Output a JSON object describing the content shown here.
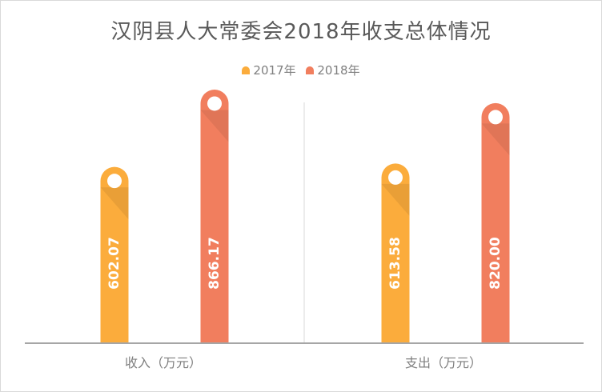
{
  "chart_data": {
    "type": "bar",
    "title": "汉阴县人大常委会2018年收支总体情况",
    "categories": [
      "收入（万元）",
      "支出（万元）"
    ],
    "series": [
      {
        "name": "2017年",
        "values": [
          602.07,
          613.58
        ],
        "labels": [
          "602.07",
          "613.58"
        ],
        "color": "#FBAC3C"
      },
      {
        "name": "2018年",
        "values": [
          866.17,
          820.0
        ],
        "labels": [
          "866.17",
          "820.00"
        ],
        "color": "#F17E5E"
      }
    ],
    "ylim": [
      0,
      1000
    ],
    "grid": false,
    "legend": "top-center",
    "xlabel": "",
    "ylabel": ""
  }
}
